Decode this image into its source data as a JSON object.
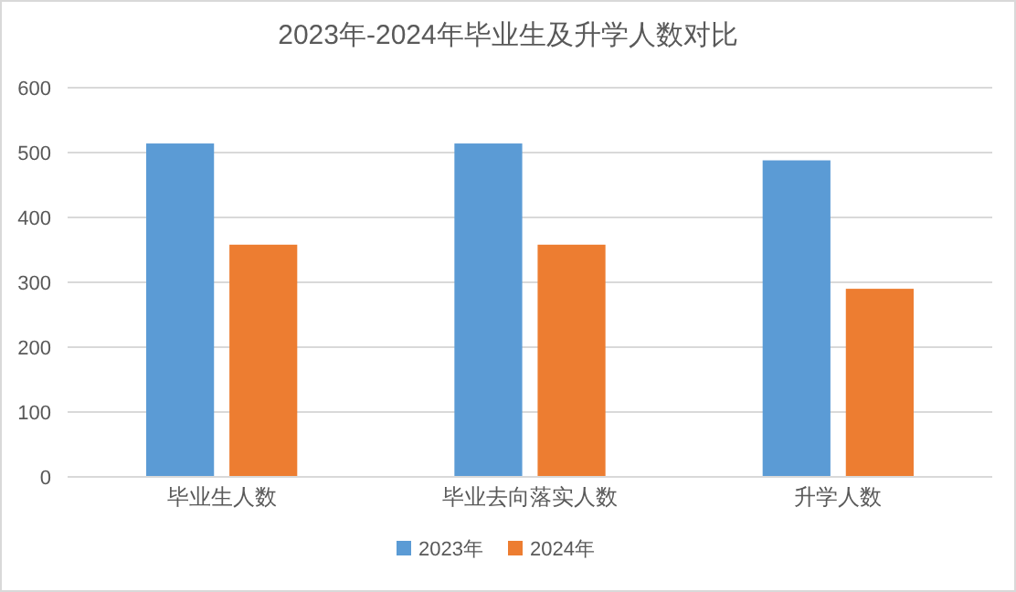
{
  "chart_data": {
    "type": "bar",
    "title": "2023年-2024年毕业生及升学人数对比",
    "categories": [
      "毕业生人数",
      "毕业去向落实人数",
      "升学人数"
    ],
    "series": [
      {
        "name": "2023年",
        "color": "#5b9bd5",
        "values": [
          514,
          514,
          488
        ]
      },
      {
        "name": "2024年",
        "color": "#ed7d31",
        "values": [
          358,
          358,
          290
        ]
      }
    ],
    "ylim": [
      0,
      600
    ],
    "yticks": [
      0,
      100,
      200,
      300,
      400,
      500,
      600
    ],
    "grid": "y",
    "legend": "bottom"
  }
}
